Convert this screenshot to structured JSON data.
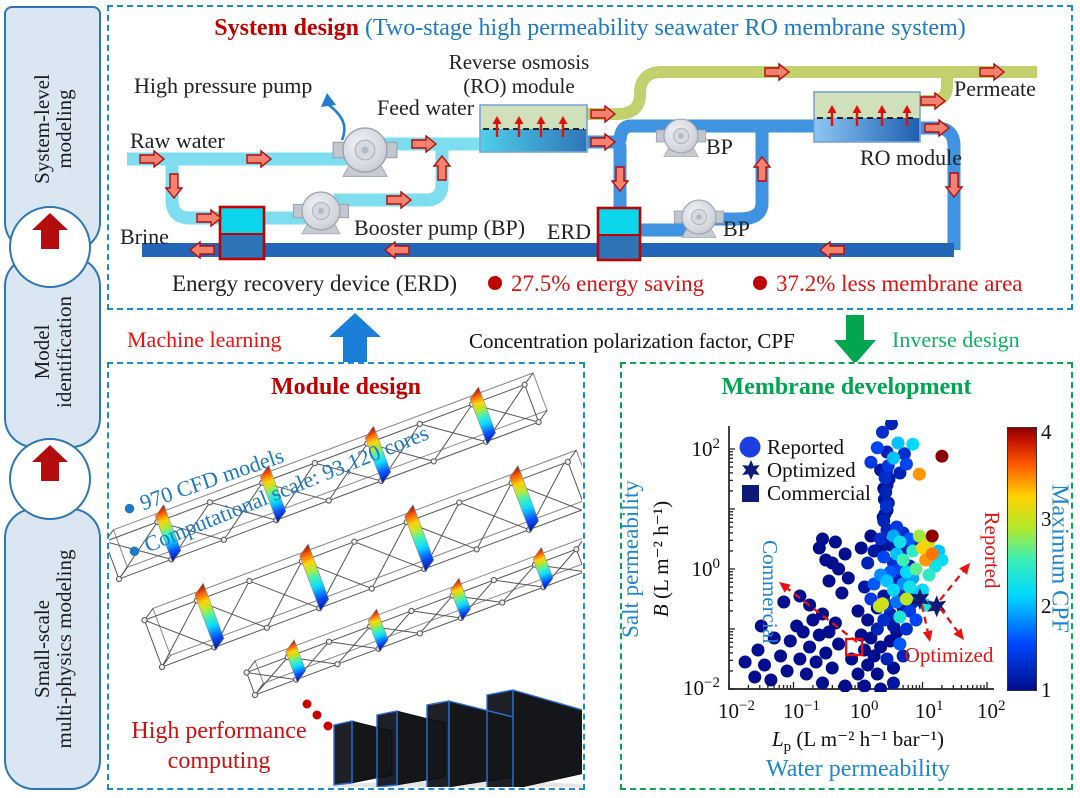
{
  "sidebar": {
    "boxes": [
      {
        "label": "System-level\nmodeling"
      },
      {
        "label": "Model\nidentification"
      },
      {
        "label": "Small-scale\nmulti-physics modeling"
      }
    ]
  },
  "top_panel": {
    "title_red": "System design",
    "title_blue": " (Two-stage high permeability seawater RO membrane system)",
    "labels": {
      "high_pressure_pump": "High pressure pump",
      "feed_water": "Feed water",
      "raw_water": "Raw water",
      "ro_line1": "Reverse osmosis",
      "ro_line2": "(RO) module",
      "brine": "Brine",
      "booster": "Booster pump (BP)",
      "erd_short": "ERD",
      "bp1": "BP",
      "bp2": "BP",
      "erd_long": "Energy recovery device (ERD)",
      "ro2": "RO module",
      "permeate": "Permeate",
      "stat1": "27.5% energy saving",
      "stat2": "37.2% less membrane area"
    }
  },
  "mid": {
    "machine_learning": "Machine learning",
    "cpf": "Concentration polarization factor, CPF",
    "inverse_design": "Inverse design"
  },
  "module_panel": {
    "title": "Module design",
    "bullet1": "●  970 CFD models",
    "bullet2": "●  Computational scale: 93,120 cores",
    "hpc": "High performance\ncomputing"
  },
  "membrane_panel": {
    "title": "Membrane development",
    "legend": {
      "reported": "Reported",
      "optimized": "Optimized",
      "commercial": "Commercial"
    },
    "salt": "Salt permeability",
    "b_it": "B",
    "b_units": " (L m⁻² h⁻¹)",
    "lp_it": "L",
    "lp_sub": "p",
    "lp_units": " (L m⁻² h⁻¹ bar⁻¹)",
    "water": "Water permeability",
    "cbar_label": "Maximum CPF",
    "cticks": [
      "4",
      "3",
      "2",
      "1"
    ],
    "yticks": [
      {
        "b": "10",
        "e": "2"
      },
      {
        "b": "10",
        "e": "0"
      },
      {
        "b": "10",
        "e": "−2"
      }
    ],
    "xticks": [
      {
        "b": "10",
        "e": "−2"
      },
      {
        "b": "10",
        "e": "−1"
      },
      {
        "b": "10",
        "e": "0"
      },
      {
        "b": "10",
        "e": "1"
      },
      {
        "b": "10",
        "e": "2"
      }
    ],
    "ann": {
      "commercial": "Commercial",
      "reported": "Reported",
      "optimized": "Optimized"
    }
  },
  "chart_data": {
    "type": "scatter",
    "title": "Membrane development",
    "xlabel": "Water permeability, Lp (L m-2 h-1 bar-1)",
    "ylabel": "Salt permeability, B (L m-2 h-1)",
    "xscale": "log",
    "yscale": "log",
    "xlim": [
      0.01,
      100
    ],
    "ylim": [
      0.01,
      200
    ],
    "colorbar": {
      "label": "Maximum CPF",
      "min": 1,
      "max": 4
    },
    "legend": [
      "Reported",
      "Optimized",
      "Commercial"
    ],
    "points": [
      [
        -1.75,
        -1.55,
        1
      ],
      [
        -1.6,
        -1.8,
        1
      ],
      [
        -1.55,
        -1.35,
        1
      ],
      [
        -1.45,
        -1.6,
        1
      ],
      [
        -1.35,
        -1.85,
        1
      ],
      [
        -1.5,
        -0.95,
        1
      ],
      [
        -1.3,
        -1.15,
        1
      ],
      [
        -1.2,
        -1.45,
        1
      ],
      [
        -1.1,
        -1.7,
        1
      ],
      [
        -1.05,
        -1.2,
        1
      ],
      [
        -0.95,
        -0.95,
        1
      ],
      [
        -0.9,
        -1.5,
        1
      ],
      [
        -0.85,
        -1.05,
        1
      ],
      [
        -0.8,
        -1.75,
        1
      ],
      [
        -0.75,
        -1.3,
        1
      ],
      [
        -0.7,
        -0.85,
        1
      ],
      [
        -0.65,
        -1.55,
        1
      ],
      [
        -0.6,
        -1.1,
        1
      ],
      [
        -0.55,
        -1.9,
        1
      ],
      [
        -0.5,
        -1.4,
        1
      ],
      [
        -1.15,
        -0.55,
        1
      ],
      [
        -0.9,
        -0.45,
        1
      ],
      [
        -0.75,
        -0.6,
        1
      ],
      [
        -0.55,
        -0.75,
        1
      ],
      [
        -0.45,
        -1.05,
        1
      ],
      [
        -0.4,
        -1.65,
        1
      ],
      [
        -0.35,
        -0.9,
        1
      ],
      [
        -0.3,
        -1.25,
        1
      ],
      [
        -0.6,
        0.35,
        1
      ],
      [
        -0.5,
        0.15,
        1
      ],
      [
        -0.45,
        -0.2,
        1
      ],
      [
        -0.35,
        0.45,
        1
      ],
      [
        -0.3,
        0,
        1
      ],
      [
        -0.25,
        -0.4,
        1
      ],
      [
        -0.2,
        0.25,
        1
      ],
      [
        -0.15,
        -0.15,
        1
      ],
      [
        -0.55,
        0.5,
        1
      ],
      [
        -0.4,
        0.1,
        1
      ],
      [
        0.0,
        -0.7,
        1
      ],
      [
        0.05,
        -1.1,
        1
      ],
      [
        0.1,
        -0.3,
        1.1
      ],
      [
        0.1,
        -1.35,
        1
      ],
      [
        0.15,
        0.1,
        1.2
      ],
      [
        0.15,
        -0.85,
        1
      ],
      [
        0.2,
        -0.5,
        1.4
      ],
      [
        0.2,
        -1.15,
        1
      ],
      [
        0.25,
        0.3,
        1.1
      ],
      [
        0.25,
        -0.25,
        1.6
      ],
      [
        0.3,
        -0.65,
        1
      ],
      [
        0.3,
        -1.0,
        1.2
      ],
      [
        0.35,
        0.5,
        1.3
      ],
      [
        0.35,
        -0.1,
        1.8
      ],
      [
        0.35,
        -1.3,
        1
      ],
      [
        0.4,
        0.2,
        1.5
      ],
      [
        0.4,
        -0.45,
        1.1
      ],
      [
        0.4,
        -0.85,
        1.3
      ],
      [
        0.45,
        0.65,
        1.2
      ],
      [
        0.45,
        -0.2,
        2.0
      ],
      [
        0.45,
        -0.6,
        1.4
      ],
      [
        0.5,
        0.4,
        1.1
      ],
      [
        0.5,
        -0.05,
        1.6
      ],
      [
        0.5,
        -0.75,
        1.2
      ],
      [
        0.5,
        -1.2,
        1
      ],
      [
        0.55,
        0.55,
        1.9
      ],
      [
        0.55,
        0.1,
        1.3
      ],
      [
        0.55,
        -0.35,
        2.1
      ],
      [
        0.55,
        -0.95,
        1.1
      ],
      [
        0.6,
        0.7,
        1.4
      ],
      [
        0.6,
        0.25,
        2.0
      ],
      [
        0.6,
        -0.15,
        1.2
      ],
      [
        0.6,
        -0.55,
        1.7
      ],
      [
        0.6,
        -1.05,
        1
      ],
      [
        0.65,
        0.45,
        2.2
      ],
      [
        0.65,
        0.0,
        1.5
      ],
      [
        0.65,
        -0.4,
        1.2
      ],
      [
        0.65,
        -0.8,
        2.3
      ],
      [
        0.7,
        0.6,
        1.3
      ],
      [
        0.7,
        0.15,
        2.5
      ],
      [
        0.7,
        -0.25,
        1.8
      ],
      [
        0.7,
        -0.65,
        1.1
      ],
      [
        0.75,
        0.35,
        1.2
      ],
      [
        0.75,
        -0.05,
        2.1
      ],
      [
        0.75,
        -0.5,
        2.9
      ],
      [
        0.75,
        -1.0,
        1.3
      ],
      [
        0.8,
        0.5,
        1.6
      ],
      [
        0.8,
        0.05,
        1.2
      ],
      [
        0.8,
        -0.3,
        2.2
      ],
      [
        0.8,
        -0.7,
        1.4
      ],
      [
        0.85,
        0.3,
        2.4
      ],
      [
        0.85,
        -0.15,
        1.9
      ],
      [
        0.85,
        -0.55,
        1.2
      ],
      [
        0.9,
        0.45,
        1.3
      ],
      [
        0.9,
        0.0,
        2.6
      ],
      [
        0.9,
        -0.4,
        2.0
      ],
      [
        0.9,
        -0.85,
        1.5
      ],
      [
        0.35,
        0.35,
        1
      ],
      [
        0.25,
        -1.45,
        1
      ],
      [
        0.15,
        -1.6,
        1
      ],
      [
        0.3,
        -1.75,
        1
      ],
      [
        0.45,
        -1.5,
        1.2
      ],
      [
        0.55,
        -1.65,
        1
      ],
      [
        0.0,
        -1.75,
        1
      ],
      [
        -0.1,
        -1.5,
        1
      ],
      [
        0.65,
        -1.25,
        1.6
      ],
      [
        0.7,
        -1.45,
        1.2
      ],
      [
        0.2,
        0.55,
        1
      ],
      [
        0.05,
        0.35,
        1
      ],
      [
        0.4,
        0.8,
        1.2
      ],
      [
        0.42,
        0.92,
        1.1
      ],
      [
        0.44,
        1.04,
        1.3
      ],
      [
        0.41,
        1.16,
        1.1
      ],
      [
        0.43,
        1.28,
        1.2
      ],
      [
        0.45,
        1.4,
        1.1
      ],
      [
        0.42,
        1.52,
        1.3
      ],
      [
        0.44,
        1.62,
        1.2
      ],
      [
        0.47,
        1.72,
        1.4
      ],
      [
        0.39,
        0.86,
        1
      ],
      [
        0.45,
        0.98,
        1
      ],
      [
        0.47,
        1.1,
        1.2
      ],
      [
        0.4,
        1.34,
        1
      ],
      [
        0.48,
        1.5,
        1.1
      ],
      [
        0.38,
        2.28,
        1.3
      ],
      [
        0.52,
        2.42,
        1.2
      ],
      [
        0.3,
        2.02,
        1.5
      ],
      [
        0.62,
        2.1,
        2.0
      ],
      [
        0.85,
        2.08,
        2.1
      ],
      [
        0.45,
        1.95,
        1.2
      ],
      [
        0.2,
        1.78,
        1.4
      ],
      [
        0.72,
        1.92,
        1.3
      ],
      [
        0.95,
        1.58,
        3.4
      ],
      [
        1.3,
        1.88,
        4.0
      ],
      [
        0.55,
        1.85,
        2.0
      ],
      [
        0.35,
        1.65,
        1.1
      ],
      [
        0.65,
        1.6,
        1.2
      ],
      [
        0.75,
        1.75,
        1.5
      ],
      [
        1.0,
        0.35,
        3.2
      ],
      [
        1.05,
        0.15,
        3.4
      ],
      [
        1.1,
        0.45,
        3.0
      ],
      [
        1.1,
        -0.1,
        2.4
      ],
      [
        1.15,
        0.25,
        3.5
      ],
      [
        1.15,
        0.55,
        4.0
      ],
      [
        1.2,
        0.05,
        2.2
      ],
      [
        1.25,
        0.3,
        2.0
      ],
      [
        1.0,
        -0.35,
        2.1
      ],
      [
        1.05,
        -0.6,
        2.3
      ],
      [
        1.3,
        0.15,
        2.1
      ],
      [
        0.95,
        0.55,
        2.8
      ],
      [
        0.33,
        -0.62,
        2.9
      ],
      [
        0.38,
        -0.58,
        3.0
      ],
      [
        0.1,
        -1.95,
        1
      ],
      [
        0.35,
        -2.0,
        1
      ],
      [
        -0.2,
        -1.95,
        1
      ],
      [
        0.55,
        -1.9,
        1.1
      ]
    ],
    "optimized_stars": [
      [
        0.96,
        -0.5
      ],
      [
        1.22,
        -0.62
      ]
    ],
    "commercial_square": [
      -0.06,
      -1.3
    ]
  }
}
